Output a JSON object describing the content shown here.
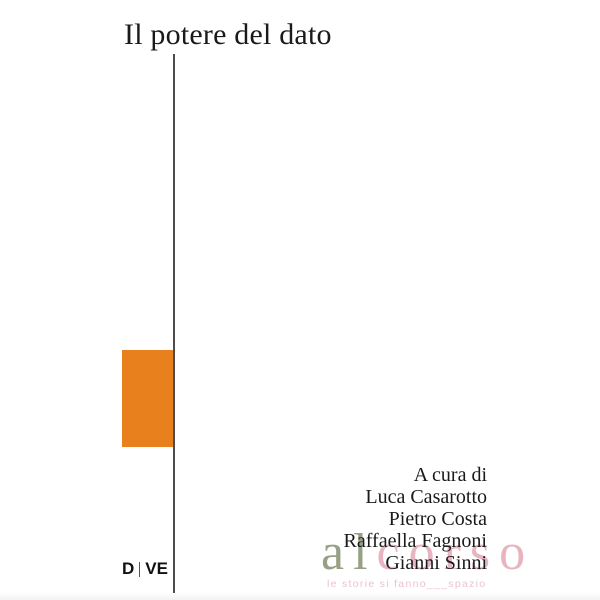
{
  "cover": {
    "title": "Il potere del dato",
    "credits": {
      "intro": "A cura di",
      "authors": [
        "Luca Casarotto",
        "Pietro Costa",
        "Raffaella Fagnoni",
        "Gianni Sinni"
      ]
    },
    "publisher": {
      "logo_left": "D",
      "logo_right": "VE"
    }
  },
  "watermark": {
    "part_green": "al",
    "part_pink": "corso",
    "tagline": "le storie si fanno___spazio"
  },
  "colors": {
    "accent_orange": "#e8801e",
    "rule_line": "#4d4d4d",
    "watermark_green": "#97a085",
    "watermark_pink": "#e3a8b6",
    "tagline_pink": "#eec2cc",
    "title_text": "#1a1a1a"
  }
}
